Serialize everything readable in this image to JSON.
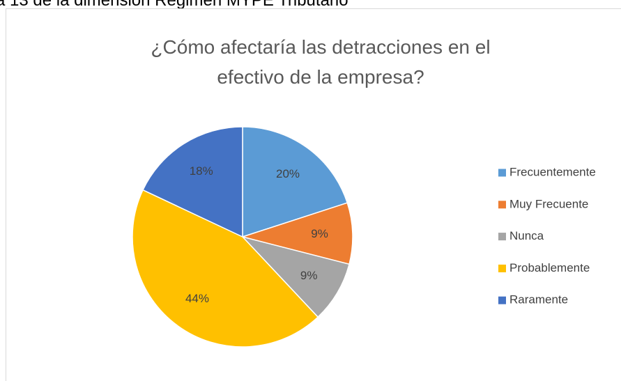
{
  "caption": "a 13 de la dimensión Régimen MYPE Tributario",
  "chart_data": {
    "type": "pie",
    "title": "¿Cómo afectaría las detracciones en el efectivo de la empresa?",
    "categories": [
      "Frecuentemente",
      "Muy Frecuente",
      "Nunca",
      "Probablemente",
      "Raramente"
    ],
    "values": [
      20,
      9,
      9,
      44,
      18
    ],
    "value_labels": [
      "20%",
      "9%",
      "9%",
      "44%",
      "18%"
    ],
    "colors": [
      "#5b9bd5",
      "#ed7d31",
      "#a5a5a5",
      "#ffc000",
      "#4472c4"
    ],
    "legend": "right"
  }
}
